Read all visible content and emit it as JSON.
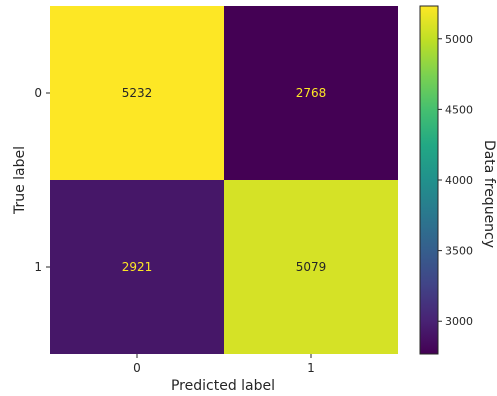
{
  "chart_data": {
    "type": "heatmap",
    "title": "",
    "xlabel": "Predicted label",
    "ylabel": "True label",
    "x_categories": [
      "0",
      "1"
    ],
    "y_categories": [
      "0",
      "1"
    ],
    "values": [
      [
        5232,
        2768
      ],
      [
        2921,
        5079
      ]
    ],
    "colormap": "viridis",
    "colorbar": {
      "label": "Data frequency",
      "ticks": [
        3000,
        3500,
        4000,
        4500,
        5000
      ],
      "range": [
        2768,
        5232
      ]
    },
    "grid": false
  }
}
